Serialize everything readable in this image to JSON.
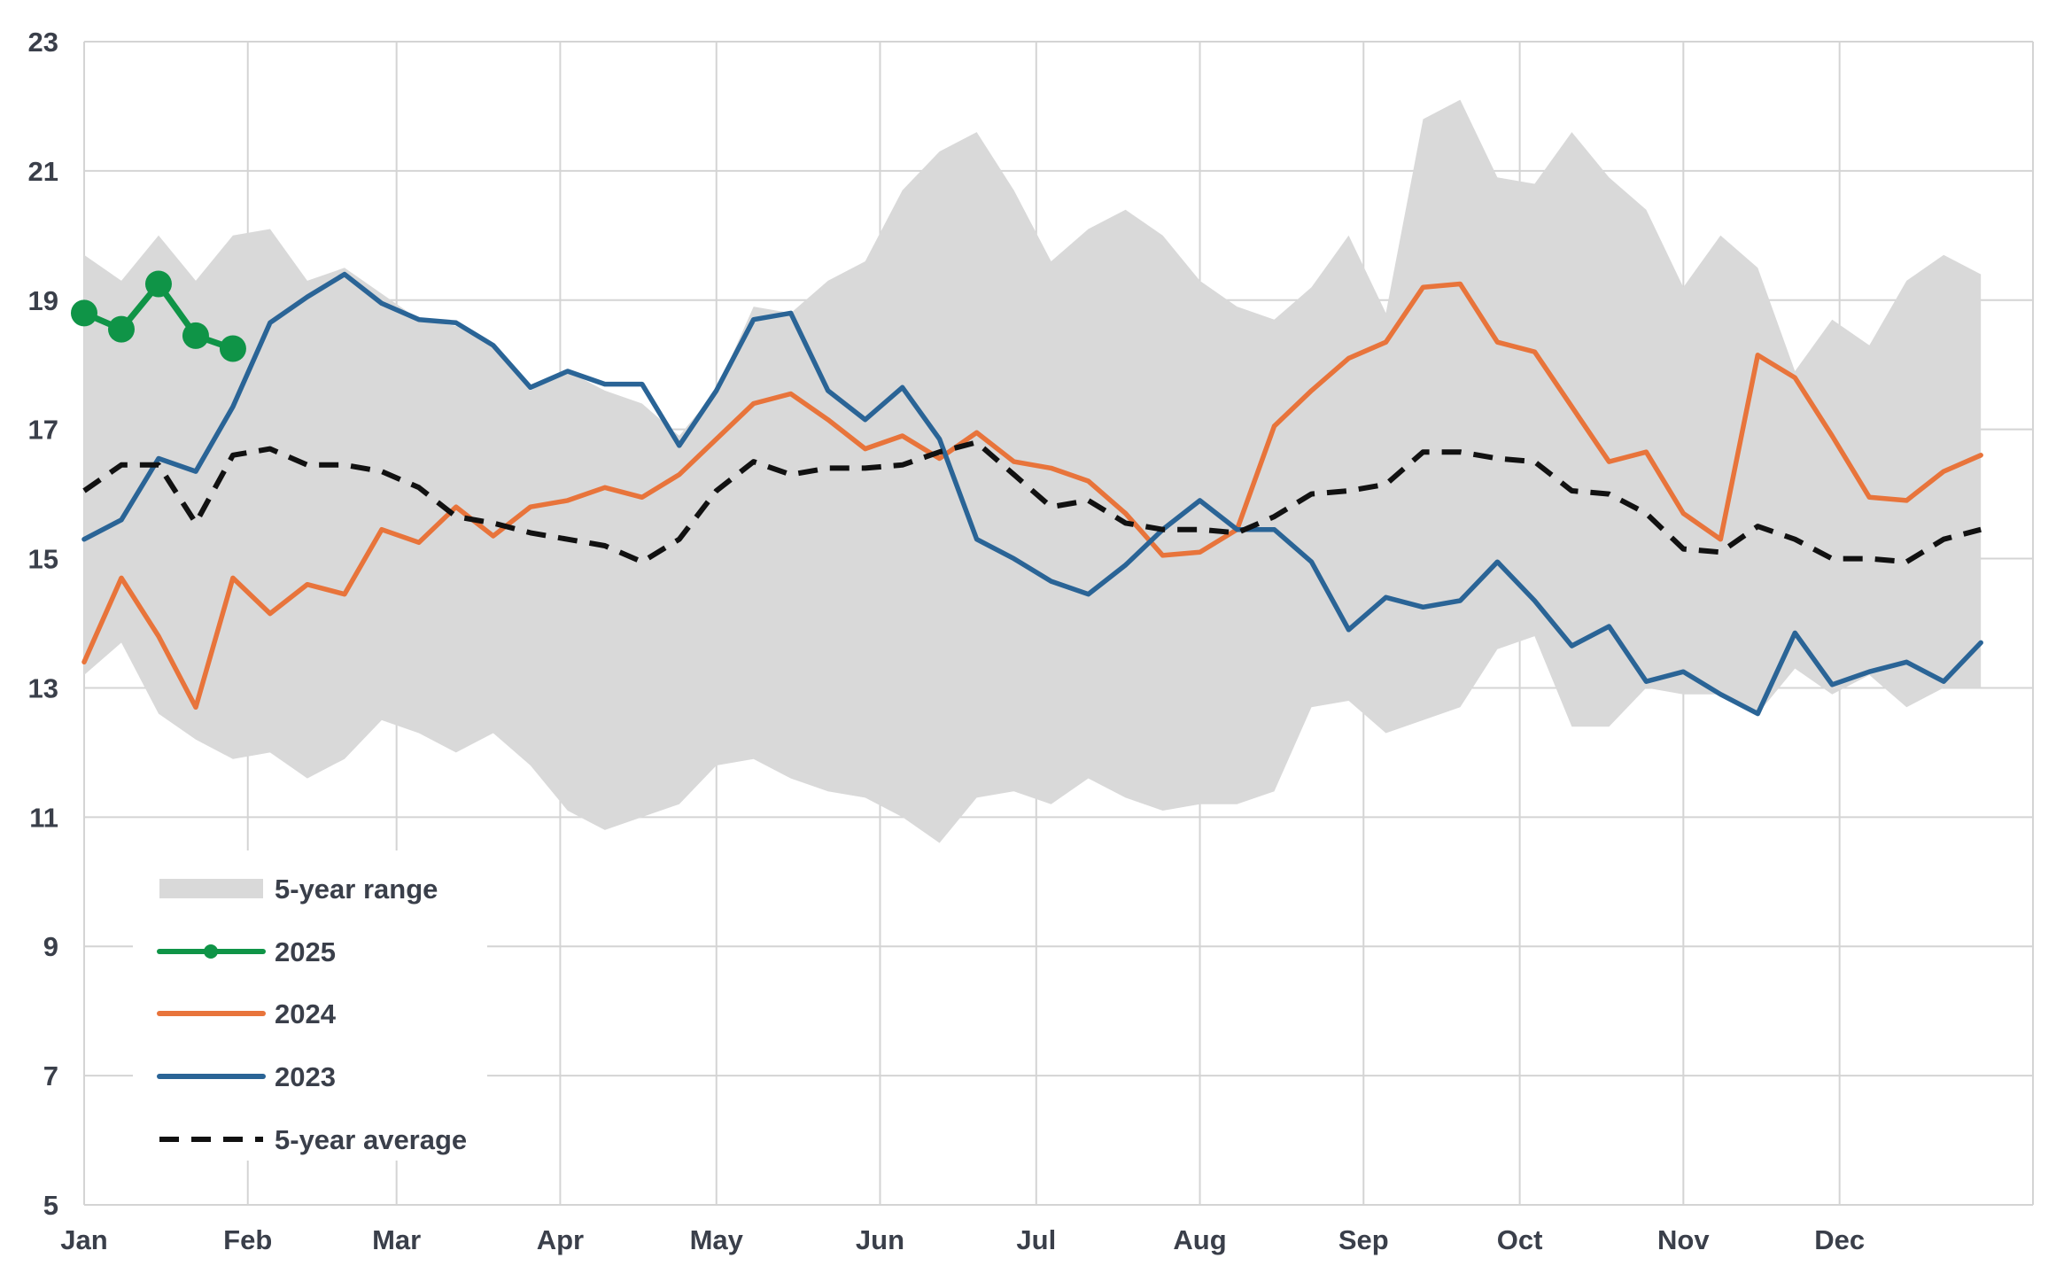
{
  "chart_data": {
    "type": "line",
    "title": "",
    "xlabel": "",
    "ylabel": "",
    "ylim": [
      5,
      23
    ],
    "yticks": [
      5,
      7,
      9,
      11,
      13,
      15,
      17,
      19,
      21,
      23
    ],
    "xlim": [
      0,
      52.4
    ],
    "xticks": [
      {
        "label": "Jan",
        "week": 0
      },
      {
        "label": "Feb",
        "week": 4.4
      },
      {
        "label": "Mar",
        "week": 8.4
      },
      {
        "label": "Apr",
        "week": 12.8
      },
      {
        "label": "May",
        "week": 17.0
      },
      {
        "label": "Jun",
        "week": 21.4
      },
      {
        "label": "Jul",
        "week": 25.6
      },
      {
        "label": "Aug",
        "week": 30.0
      },
      {
        "label": "Sep",
        "week": 34.4
      },
      {
        "label": "Oct",
        "week": 38.6
      },
      {
        "label": "Nov",
        "week": 43.0
      },
      {
        "label": "Dec",
        "week": 47.2
      }
    ],
    "grid": true,
    "legend_position": "bottom-left",
    "colors": {
      "range": "#d9d9d9",
      "s2025": "#0f9447",
      "s2024": "#e8743b",
      "s2023": "#2a6496",
      "avg": "#111111",
      "grid": "#d4d4d4",
      "text": "#3a3f4a"
    },
    "range_upper": [
      19.7,
      19.3,
      20.0,
      19.3,
      20.0,
      20.1,
      19.3,
      19.5,
      19.1,
      18.7,
      18.6,
      18.3,
      17.6,
      17.9,
      17.6,
      17.4,
      16.9,
      17.6,
      18.9,
      18.8,
      19.3,
      19.6,
      20.7,
      21.3,
      21.6,
      20.7,
      19.6,
      20.1,
      20.4,
      20.0,
      19.3,
      18.9,
      18.7,
      19.2,
      20.0,
      18.8,
      21.8,
      22.1,
      20.9,
      20.8,
      21.6,
      20.9,
      20.4,
      19.2,
      20.0,
      19.5,
      17.9,
      18.7,
      18.3,
      19.3,
      19.7,
      19.4
    ],
    "range_lower": [
      13.2,
      13.7,
      12.6,
      12.2,
      11.9,
      12.0,
      11.6,
      11.9,
      12.5,
      12.3,
      12.0,
      12.3,
      11.8,
      11.1,
      10.8,
      11.0,
      11.2,
      11.8,
      11.9,
      11.6,
      11.4,
      11.3,
      11.0,
      10.6,
      11.3,
      11.4,
      11.2,
      11.6,
      11.3,
      11.1,
      11.2,
      11.2,
      11.4,
      12.7,
      12.8,
      12.3,
      12.5,
      12.7,
      13.6,
      13.8,
      12.4,
      12.4,
      13.0,
      12.9,
      12.9,
      12.6,
      13.3,
      12.9,
      13.2,
      12.7,
      13.0,
      13.0
    ],
    "series": [
      {
        "name": "2025",
        "key": "s2025",
        "markers": true,
        "values": [
          18.8,
          18.55,
          19.25,
          18.45,
          18.25
        ]
      },
      {
        "name": "2024",
        "key": "s2024",
        "markers": false,
        "values": [
          13.4,
          14.7,
          13.8,
          12.7,
          14.7,
          14.15,
          14.6,
          14.45,
          15.45,
          15.25,
          15.8,
          15.35,
          15.8,
          15.9,
          16.1,
          15.95,
          16.3,
          16.85,
          17.4,
          17.55,
          17.15,
          16.7,
          16.9,
          16.55,
          16.95,
          16.5,
          16.4,
          16.2,
          15.7,
          15.05,
          15.1,
          15.45,
          17.05,
          17.6,
          18.1,
          18.35,
          19.2,
          19.25,
          18.35,
          18.2,
          17.35,
          16.5,
          16.65,
          15.7,
          15.3,
          18.15,
          17.8,
          16.9,
          15.95,
          15.9,
          16.35,
          16.6
        ]
      },
      {
        "name": "2023",
        "key": "s2023",
        "markers": false,
        "values": [
          15.3,
          15.6,
          16.55,
          16.35,
          17.35,
          18.65,
          19.05,
          19.4,
          18.95,
          18.7,
          18.65,
          18.3,
          17.65,
          17.9,
          17.7,
          17.7,
          16.75,
          17.6,
          18.7,
          18.8,
          17.6,
          17.15,
          17.65,
          16.85,
          15.3,
          15.0,
          14.65,
          14.45,
          14.9,
          15.45,
          15.9,
          15.45,
          15.45,
          14.95,
          13.9,
          14.4,
          14.25,
          14.35,
          14.95,
          14.35,
          13.65,
          13.95,
          13.1,
          13.25,
          12.9,
          12.6,
          13.85,
          13.05,
          13.25,
          13.4,
          13.1,
          13.7
        ]
      },
      {
        "name": "5-year average",
        "key": "avg",
        "markers": false,
        "dashed": true,
        "values": [
          16.05,
          16.45,
          16.45,
          15.55,
          16.6,
          16.7,
          16.45,
          16.45,
          16.35,
          16.1,
          15.65,
          15.55,
          15.4,
          15.3,
          15.2,
          14.95,
          15.3,
          16.05,
          16.5,
          16.3,
          16.4,
          16.4,
          16.45,
          16.65,
          16.8,
          16.3,
          15.8,
          15.9,
          15.55,
          15.45,
          15.45,
          15.4,
          15.65,
          16.0,
          16.05,
          16.15,
          16.65,
          16.65,
          16.55,
          16.5,
          16.05,
          16.0,
          15.7,
          15.15,
          15.1,
          15.5,
          15.3,
          15.0,
          15.0,
          14.95,
          15.3,
          15.45
        ]
      }
    ],
    "legend": [
      {
        "label": "5-year range",
        "key": "range",
        "kind": "band"
      },
      {
        "label": "2025",
        "key": "s2025",
        "kind": "marker-line"
      },
      {
        "label": "2024",
        "key": "s2024",
        "kind": "line"
      },
      {
        "label": "2023",
        "key": "s2023",
        "kind": "line"
      },
      {
        "label": "5-year average",
        "key": "avg",
        "kind": "dashed"
      }
    ]
  }
}
